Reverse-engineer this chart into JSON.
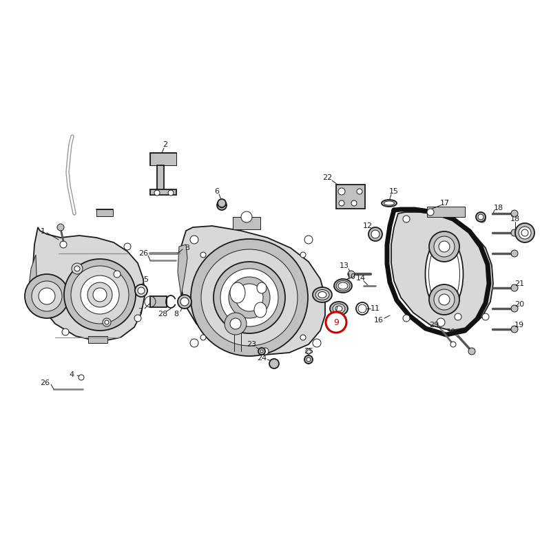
{
  "background_color": "#ffffff",
  "line_color": "#1a1a1a",
  "fill_light": "#d8d8d8",
  "fill_medium": "#c0c0c0",
  "red_circle_color": "#cc0000",
  "fig_width": 8.0,
  "fig_height": 8.0,
  "lw_thick": 2.5,
  "lw_main": 1.3,
  "lw_thin": 0.7,
  "lw_gasket": 5.0
}
